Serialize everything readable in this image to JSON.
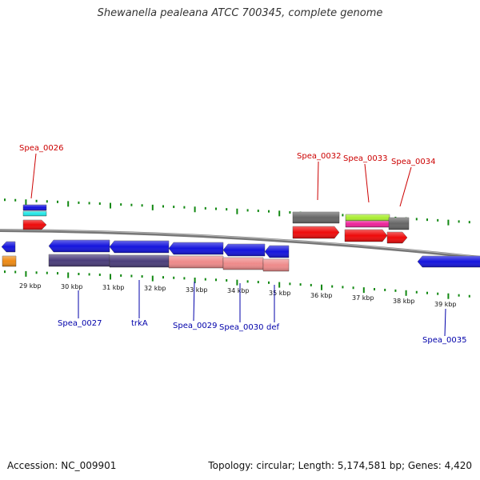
{
  "title": "Shewanella pealeana ATCC 700345, complete genome",
  "footer": {
    "accession": "Accession: NC_009901",
    "summary": "Topology: circular; Length: 5,174,581 bp; Genes: 4,420"
  },
  "colors": {
    "backbone": "#777777",
    "tick": "#118811",
    "top_label": "#cc0000",
    "bottom_label": "#0000aa",
    "gene_blue": "#1414dd",
    "gene_red": "#ee0a0a",
    "gene_gray": "#666666",
    "gene_navy": "#4a3d7a",
    "gene_pink": "#ee8a8a",
    "gene_cyan": "#22e8e8",
    "gene_lime": "#aaee33",
    "gene_magenta": "#ee2299",
    "gene_orange": "#ee8a14"
  },
  "scale": {
    "unit": "kbp",
    "labels": [
      "29 kbp",
      "30 kbp",
      "31 kbp",
      "32 kbp",
      "33 kbp",
      "34 kbp",
      "35 kbp",
      "36 kbp",
      "37 kbp",
      "38 kbp",
      "39 kbp"
    ]
  },
  "top_labels": [
    "Spea_0026",
    "Spea_0032",
    "Spea_0033",
    "Spea_0034"
  ],
  "bottom_labels": [
    "Spea_0027",
    "trkA",
    "Spea_0029",
    "Spea_0030",
    "def",
    "Spea_0035"
  ]
}
